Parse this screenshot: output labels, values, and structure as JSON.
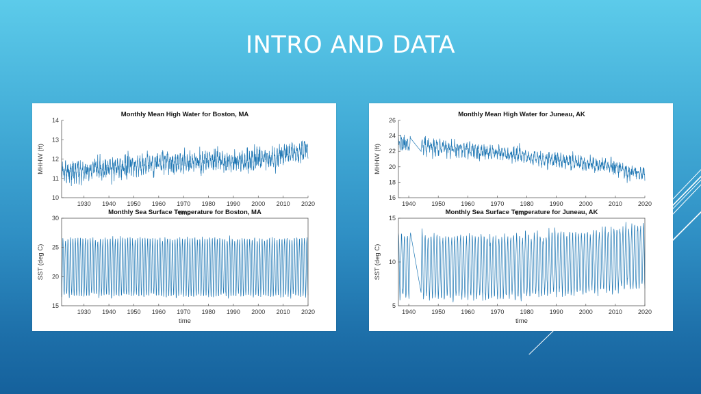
{
  "slide": {
    "title": "INTRO AND DATA",
    "colors": {
      "bg_top": "#5ccbea",
      "bg_bottom": "#15619c",
      "line_color": "#1f77b4",
      "title_color": "#ffffff",
      "accent_lines": "#ffffff"
    }
  },
  "panels": [
    {
      "id": "boston",
      "label": "Boston, MA"
    },
    {
      "id": "juneau",
      "label": "Juneau, AK"
    }
  ],
  "chart_data": [
    {
      "id": "boston-mhhw",
      "type": "line",
      "title": "Monthly Mean High Water for Boston, MA",
      "xlabel": "time",
      "ylabel": "MHHW (ft)",
      "xlim": [
        1921,
        2020
      ],
      "ylim": [
        10,
        14
      ],
      "xticks": [
        1930,
        1940,
        1950,
        1960,
        1970,
        1980,
        1990,
        2000,
        2010,
        2020
      ],
      "yticks": [
        10,
        11,
        12,
        13,
        14
      ],
      "grid": false,
      "series": [
        {
          "name": "MHHW",
          "frequency": "monthly",
          "start": 1921,
          "end": 2020,
          "trend_points": [
            [
              1921,
              11.4
            ],
            [
              1930,
              11.35
            ],
            [
              1940,
              11.5
            ],
            [
              1950,
              11.65
            ],
            [
              1960,
              11.8
            ],
            [
              1970,
              11.85
            ],
            [
              1980,
              11.9
            ],
            [
              1990,
              11.85
            ],
            [
              2000,
              12.0
            ],
            [
              2010,
              12.2
            ],
            [
              2020,
              12.45
            ]
          ],
          "seasonal_amplitude": 0.3,
          "noise_sd": 0.32,
          "observed_min": 10.5,
          "observed_max": 13.45,
          "gaps": []
        }
      ]
    },
    {
      "id": "boston-sst",
      "type": "line",
      "title": "Monthly Sea Surface Temperature for Boston, MA",
      "xlabel": "time",
      "ylabel": "SST (deg C)",
      "xlim": [
        1921,
        2020
      ],
      "ylim": [
        15,
        30
      ],
      "xticks": [
        1930,
        1940,
        1950,
        1960,
        1970,
        1980,
        1990,
        2000,
        2010,
        2020
      ],
      "yticks": [
        15,
        20,
        25,
        30
      ],
      "grid": false,
      "series": [
        {
          "name": "SST",
          "frequency": "monthly",
          "start": 1921,
          "end": 2020,
          "trend_points": [
            [
              1921,
              21.6
            ],
            [
              2020,
              21.6
            ]
          ],
          "seasonal_amplitude": 4.9,
          "noise_sd": 0.35,
          "observed_min": 15.8,
          "observed_max": 28.0,
          "gaps": []
        }
      ]
    },
    {
      "id": "juneau-mhhw",
      "type": "line",
      "title": "Monthly Mean High Water for Juneau, AK",
      "xlabel": "time",
      "ylabel": "MHHW (ft)",
      "xlim": [
        1936.5,
        2020
      ],
      "ylim": [
        16,
        26
      ],
      "xticks": [
        1940,
        1950,
        1960,
        1970,
        1980,
        1990,
        2000,
        2010,
        2020
      ],
      "yticks": [
        16,
        18,
        20,
        22,
        24,
        26
      ],
      "grid": false,
      "series": [
        {
          "name": "MHHW",
          "frequency": "monthly",
          "start": 1936.5,
          "end": 2020,
          "trend_points": [
            [
              1936.5,
              23.0
            ],
            [
              1950,
              22.5
            ],
            [
              1960,
              22.2
            ],
            [
              1970,
              21.8
            ],
            [
              1980,
              21.3
            ],
            [
              1990,
              20.9
            ],
            [
              2000,
              20.4
            ],
            [
              2010,
              20.0
            ],
            [
              2020,
              19.0
            ]
          ],
          "seasonal_amplitude": 0.5,
          "noise_sd": 0.6,
          "observed_min": 17.8,
          "observed_max": 25.0,
          "gaps": [
            [
              1940.6,
              1944.1
            ]
          ]
        }
      ]
    },
    {
      "id": "juneau-sst",
      "type": "line",
      "title": "Monthly Sea Surface Temperature for Juneau, AK",
      "xlabel": "time",
      "ylabel": "SST (deg C)",
      "xlim": [
        1936.5,
        2020
      ],
      "ylim": [
        5,
        15
      ],
      "xticks": [
        1940,
        1950,
        1960,
        1970,
        1980,
        1990,
        2000,
        2010,
        2020
      ],
      "yticks": [
        5,
        10,
        15
      ],
      "grid": false,
      "series": [
        {
          "name": "SST",
          "frequency": "monthly",
          "start": 1936.5,
          "end": 2020,
          "trend_points": [
            [
              1936.5,
              9.6
            ],
            [
              1970,
              9.4
            ],
            [
              2000,
              9.9
            ],
            [
              2020,
              10.8
            ]
          ],
          "seasonal_amplitude": 3.5,
          "noise_sd": 0.45,
          "observed_min": 4.8,
          "observed_max": 15.0,
          "gaps": [
            [
              1940.6,
              1944.1
            ]
          ]
        }
      ]
    }
  ]
}
